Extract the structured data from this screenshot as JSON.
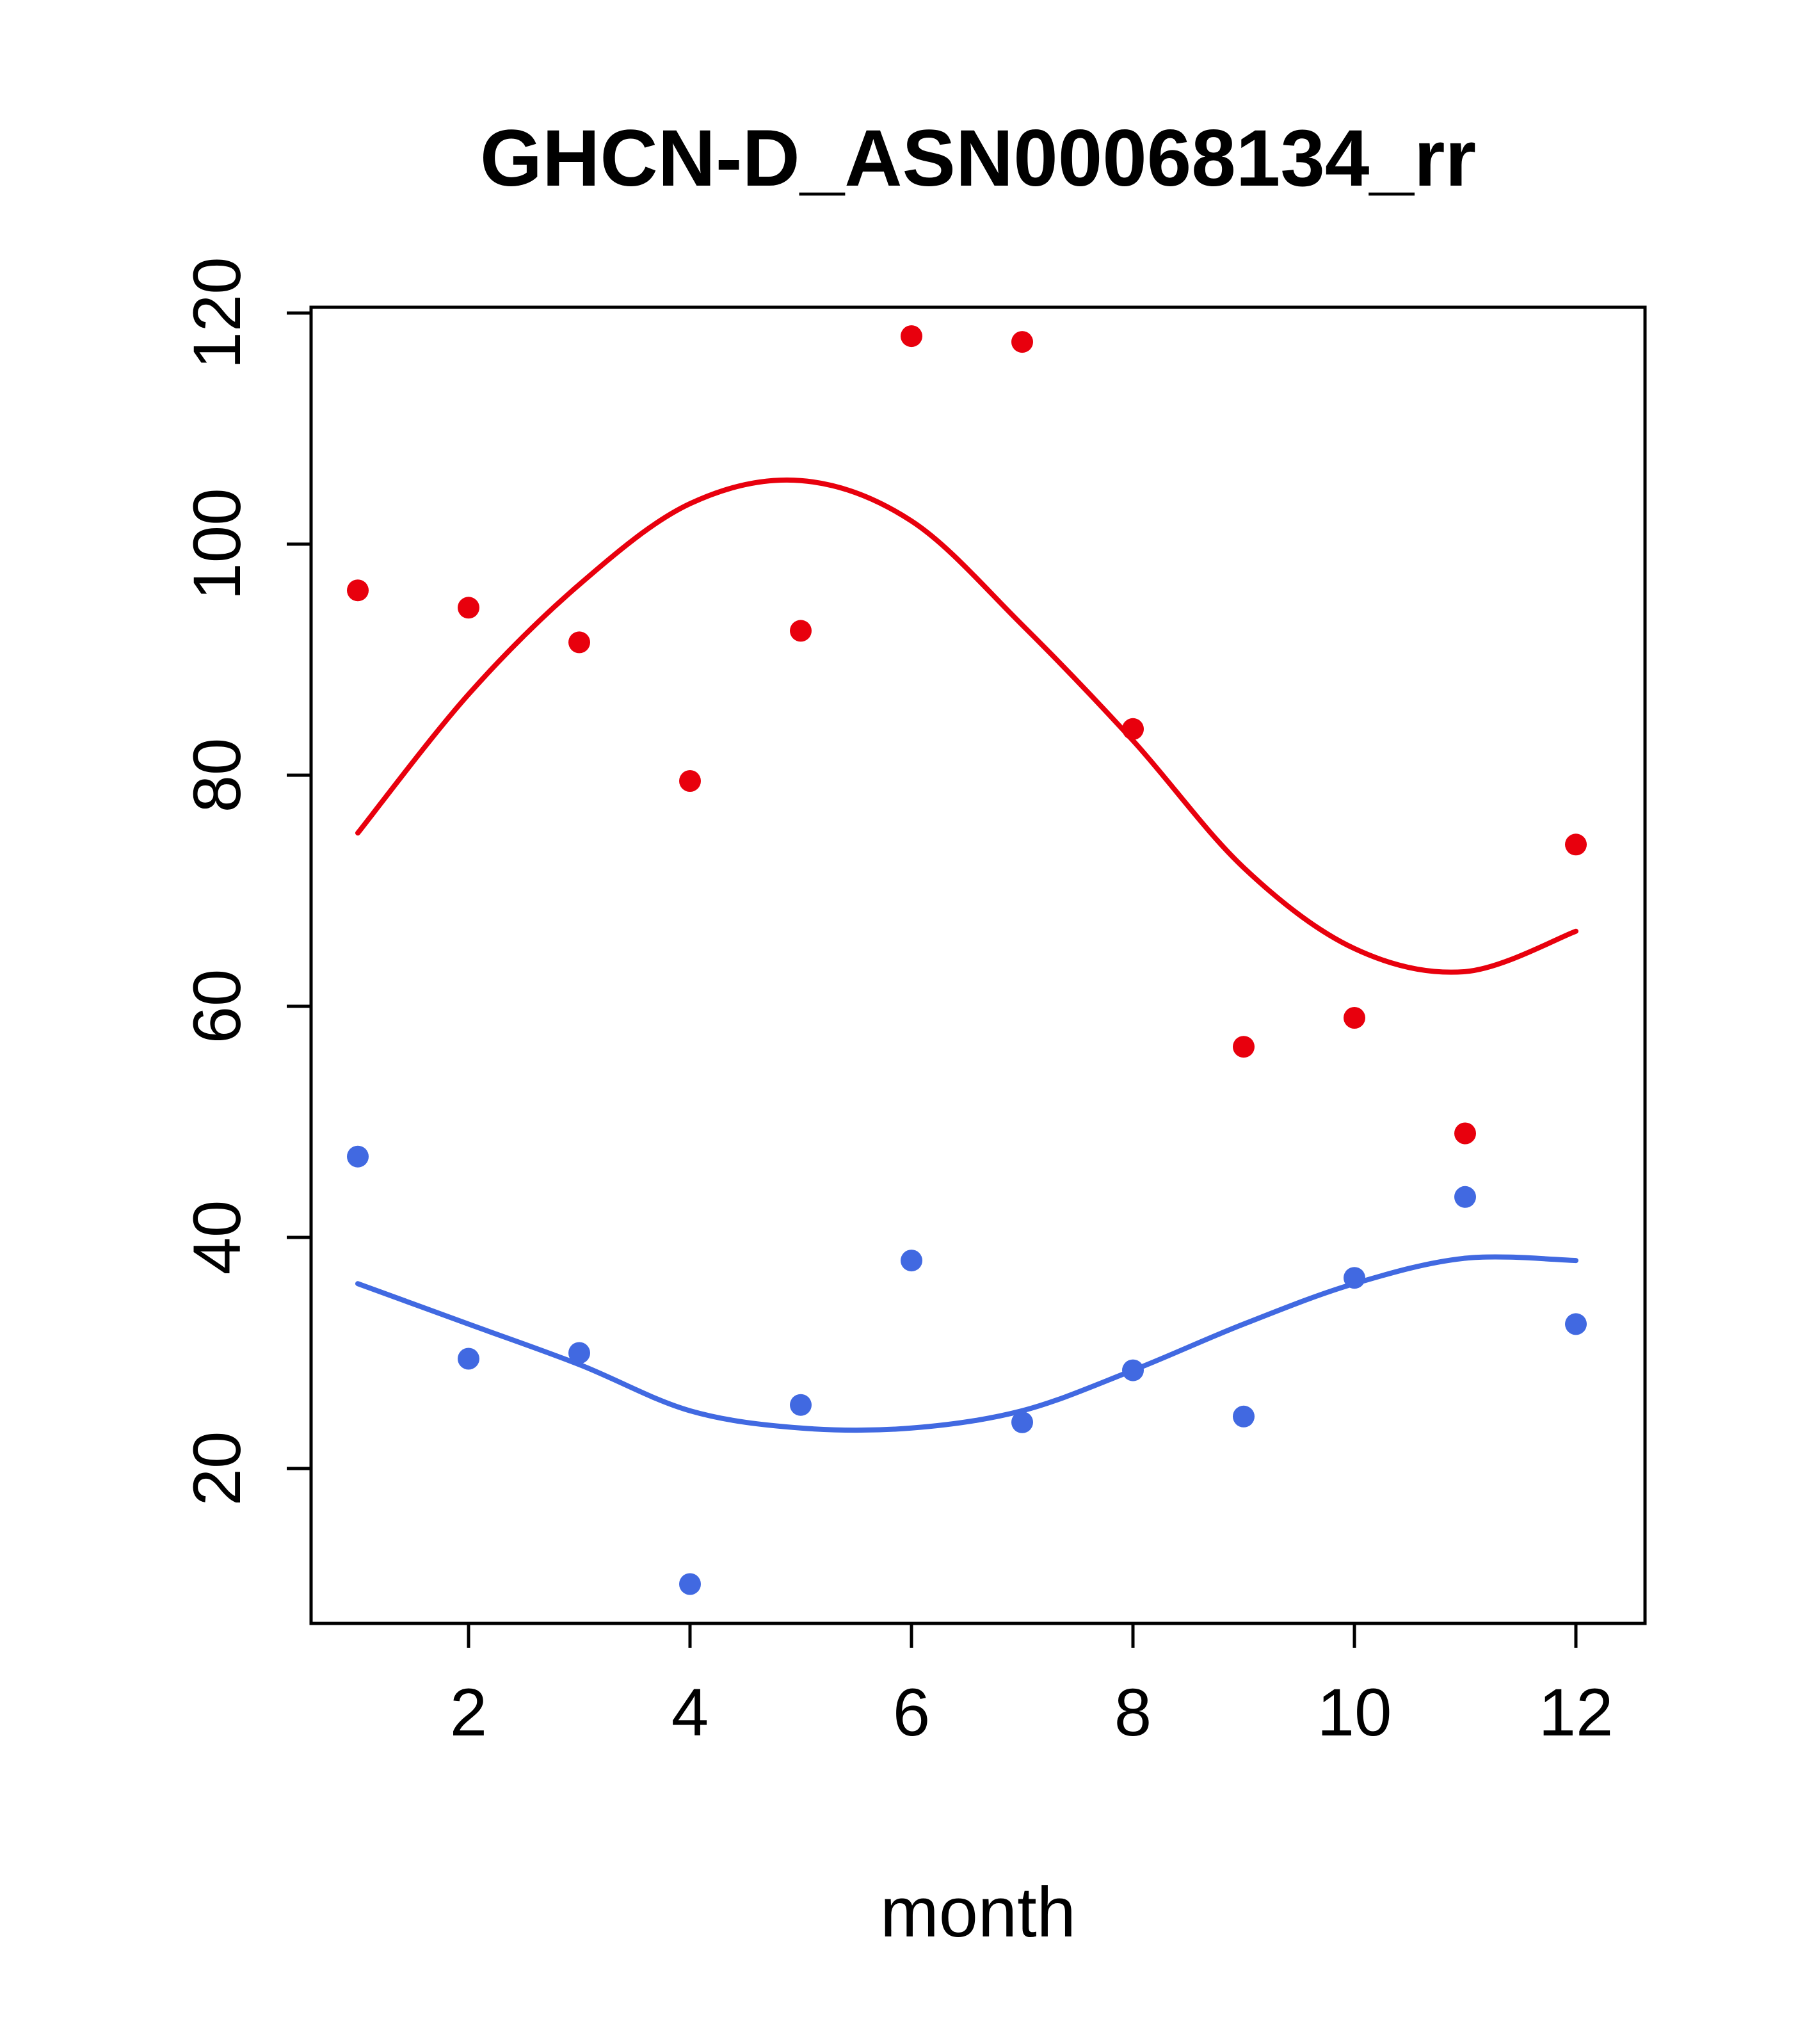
{
  "chart_data": {
    "type": "scatter",
    "title": "GHCN-D_ASN00068134_rr",
    "xlabel": "month",
    "ylabel": "",
    "x_ticks": [
      2,
      4,
      6,
      8,
      10,
      12
    ],
    "y_ticks": [
      20,
      40,
      60,
      80,
      100,
      120
    ],
    "xlim": [
      0.56,
      12.6
    ],
    "ylim": [
      6.5,
      120.5
    ],
    "grid": false,
    "legend": "none",
    "months": [
      1,
      2,
      3,
      4,
      5,
      6,
      7,
      8,
      9,
      10,
      11,
      12
    ],
    "colors": {
      "series1": "#e8000d",
      "series2": "#4169e1"
    },
    "series": [
      {
        "name": "red-monthly-points",
        "kind": "points",
        "color": "#e8000d",
        "values": [
          96,
          94.5,
          91.5,
          79.5,
          92.5,
          118,
          117.5,
          84,
          56.5,
          59,
          49,
          74
        ]
      },
      {
        "name": "red-smooth-fit-line",
        "kind": "line",
        "color": "#e8000d",
        "values": [
          75,
          87,
          96.5,
          103.5,
          105.5,
          102,
          93,
          83,
          72,
          65,
          63,
          66.5
        ]
      },
      {
        "name": "blue-monthly-points",
        "kind": "points",
        "color": "#4169e1",
        "values": [
          47,
          29.5,
          30,
          10,
          25.5,
          38,
          24,
          28.5,
          24.5,
          36.5,
          43.5,
          32.5
        ]
      },
      {
        "name": "blue-smooth-fit-line",
        "kind": "line",
        "color": "#4169e1",
        "values": [
          36,
          32.5,
          29,
          25,
          23.5,
          23.5,
          25,
          28.5,
          32.5,
          36,
          38.2,
          38
        ]
      }
    ]
  }
}
